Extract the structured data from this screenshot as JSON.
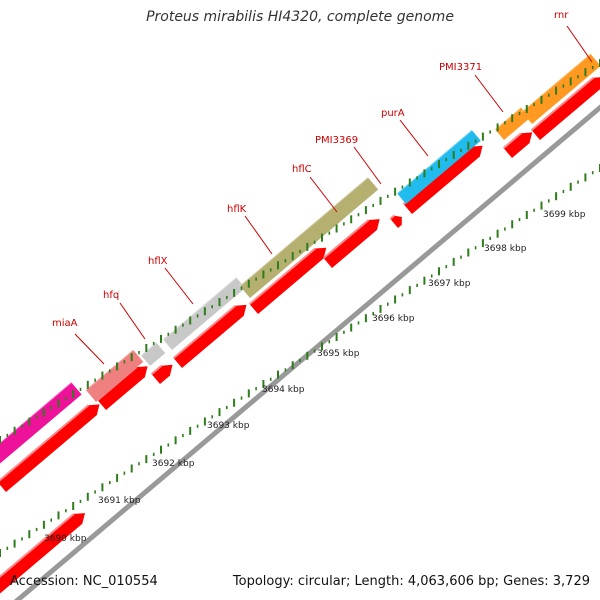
{
  "title": "Proteus mirabilis HI4320, complete genome",
  "footer": {
    "accession": "Accession: NC_010554",
    "summary": "Topology: circular; Length: 4,063,606 bp; Genes: 3,729"
  },
  "scale_labels": [
    "3690 kbp",
    "3691 kbp",
    "3692 kbp",
    "3693 kbp",
    "3694 kbp",
    "3695 kbp",
    "3696 kbp",
    "3697 kbp",
    "3698 kbp",
    "3699 kbp"
  ],
  "gene_labels": [
    "miaA",
    "hfq",
    "hflX",
    "hflK",
    "hflC",
    "PMI3369",
    "purA",
    "PMI3371",
    "rnr"
  ],
  "colors": {
    "backbone": "#999999",
    "cds": "#ff0000",
    "tick": "#2d7d1a",
    "label": "#cc0000",
    "miaA": "#f08080",
    "hfq": "#c8c8c8",
    "hflX": "#c8c8c8",
    "hflK": "#b5b070",
    "purA": "#22bbee",
    "rnr": "#ff9922",
    "magenta": "#ee1199"
  }
}
